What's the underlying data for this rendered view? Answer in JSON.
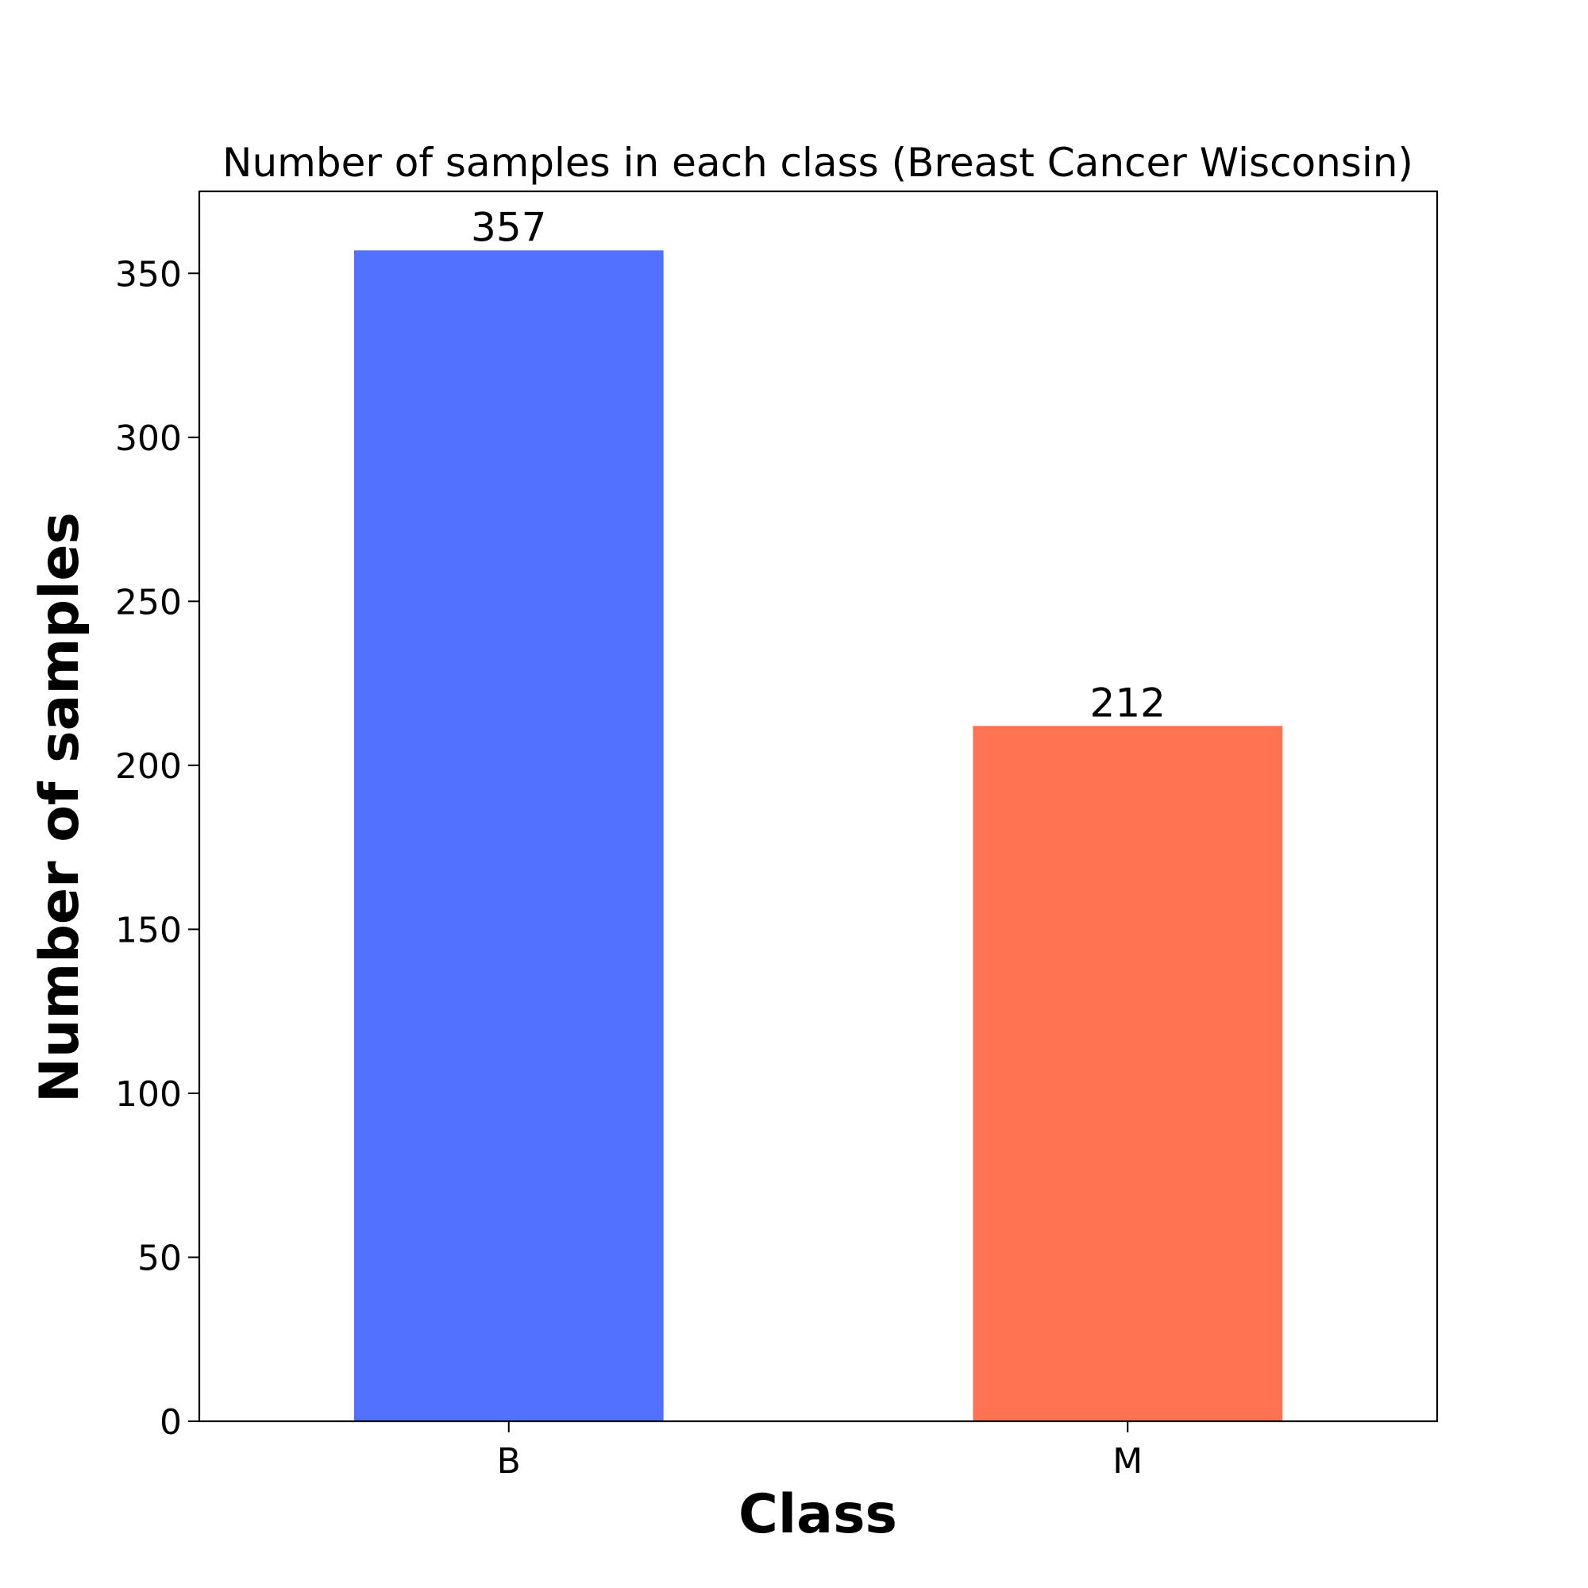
{
  "chart_data": {
    "type": "bar",
    "title": "Number of samples in each class (Breast Cancer Wisconsin)",
    "xlabel": "Class",
    "ylabel": "Number of samples",
    "categories": [
      "B",
      "M"
    ],
    "values": [
      357,
      212
    ],
    "data_labels": [
      "357",
      "212"
    ],
    "colors": [
      "#5271ff",
      "#ff7352"
    ],
    "ylim": [
      0,
      375
    ],
    "yticks": [
      0,
      50,
      100,
      150,
      200,
      250,
      300,
      350
    ],
    "ytick_labels": [
      "0",
      "50",
      "100",
      "150",
      "200",
      "250",
      "300",
      "350"
    ],
    "grid": false,
    "legend": "none"
  }
}
